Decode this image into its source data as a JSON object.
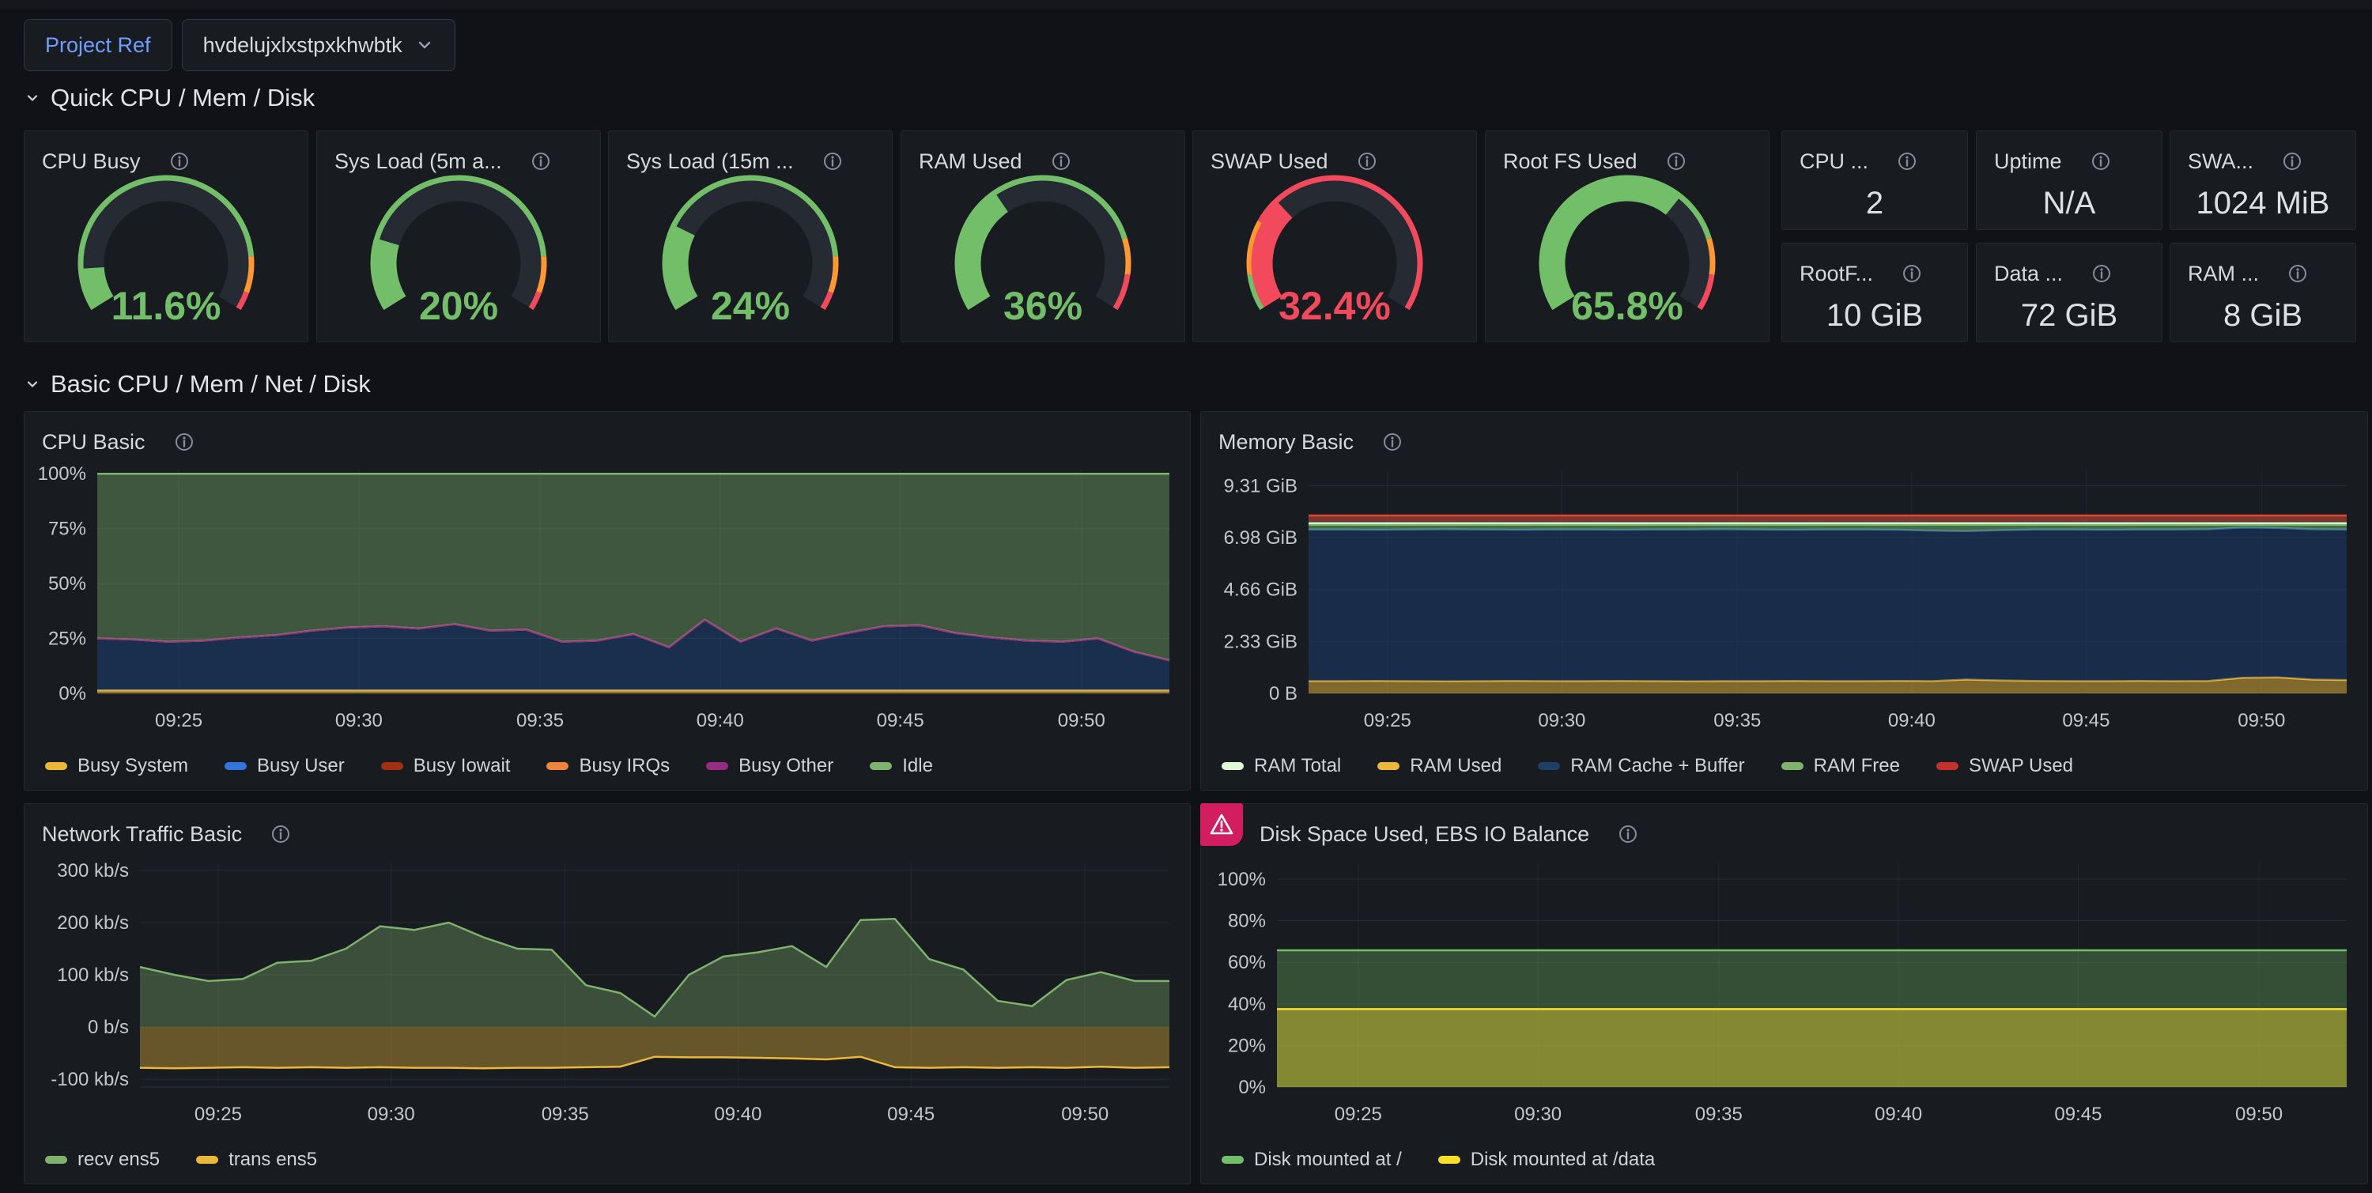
{
  "header": {
    "project_ref_label": "Project Ref",
    "project_ref_value": "hvdelujxlxstpxkhwbtk"
  },
  "sections": {
    "quick": "Quick CPU / Mem / Disk",
    "basic": "Basic CPU / Mem / Net / Disk"
  },
  "colors": {
    "green": "#73BF69",
    "orange": "#FF9830",
    "red": "#F2495C",
    "yellow": "#EAB839",
    "blue": "#3274D9",
    "alert_pink": "#d21e5f",
    "variable_label_blue": "#6e9fff"
  },
  "gauges": [
    {
      "title": "CPU Busy",
      "value_label": "11.6%",
      "fraction": 0.116,
      "color": "#73BF69",
      "thresholds": [
        {
          "to": 0.85,
          "color": "#73BF69"
        },
        {
          "to": 0.95,
          "color": "#FF9830"
        },
        {
          "to": 1,
          "color": "#F2495C"
        }
      ]
    },
    {
      "title": "Sys Load (5m a...",
      "value_label": "20%",
      "fraction": 0.2,
      "color": "#73BF69",
      "thresholds": [
        {
          "to": 0.85,
          "color": "#73BF69"
        },
        {
          "to": 0.95,
          "color": "#FF9830"
        },
        {
          "to": 1,
          "color": "#F2495C"
        }
      ]
    },
    {
      "title": "Sys Load (15m ...",
      "value_label": "24%",
      "fraction": 0.24,
      "color": "#73BF69",
      "thresholds": [
        {
          "to": 0.85,
          "color": "#73BF69"
        },
        {
          "to": 0.95,
          "color": "#FF9830"
        },
        {
          "to": 1,
          "color": "#F2495C"
        }
      ]
    },
    {
      "title": "RAM Used",
      "value_label": "36%",
      "fraction": 0.36,
      "color": "#73BF69",
      "thresholds": [
        {
          "to": 0.8,
          "color": "#73BF69"
        },
        {
          "to": 0.9,
          "color": "#FF9830"
        },
        {
          "to": 1,
          "color": "#F2495C"
        }
      ]
    },
    {
      "title": "SWAP Used",
      "value_label": "32.4%",
      "fraction": 0.324,
      "color": "#F2495C",
      "thresholds": [
        {
          "to": 0.1,
          "color": "#73BF69"
        },
        {
          "to": 0.25,
          "color": "#FF9830"
        },
        {
          "to": 1,
          "color": "#F2495C"
        }
      ]
    },
    {
      "title": "Root FS Used",
      "value_label": "65.8%",
      "fraction": 0.658,
      "color": "#73BF69",
      "thresholds": [
        {
          "to": 0.8,
          "color": "#73BF69"
        },
        {
          "to": 0.9,
          "color": "#FF9830"
        },
        {
          "to": 1,
          "color": "#F2495C"
        }
      ]
    }
  ],
  "stats": [
    {
      "title": "CPU ...",
      "value": "2"
    },
    {
      "title": "Uptime",
      "value": "N/A"
    },
    {
      "title": "SWA...",
      "value": "1024 MiB"
    },
    {
      "title": "RootF...",
      "value": "10 GiB"
    },
    {
      "title": "Data ...",
      "value": "72 GiB"
    },
    {
      "title": "RAM ...",
      "value": "8 GiB"
    }
  ],
  "chart_data": [
    {
      "type": "area",
      "stacked": true,
      "title": "CPU Basic",
      "margin_left": 92,
      "ylim": [
        0,
        101.5
      ],
      "y_ticks": [
        {
          "v": 0,
          "label": "0%"
        },
        {
          "v": 25,
          "label": "25%"
        },
        {
          "v": 50,
          "label": "50%"
        },
        {
          "v": 75,
          "label": "75%"
        },
        {
          "v": 100,
          "label": "100%"
        }
      ],
      "x_ticks": [
        {
          "pos": 0.076,
          "label": "09:25"
        },
        {
          "pos": 0.244,
          "label": "09:30"
        },
        {
          "pos": 0.413,
          "label": "09:35"
        },
        {
          "pos": 0.581,
          "label": "09:40"
        },
        {
          "pos": 0.749,
          "label": "09:45"
        },
        {
          "pos": 0.918,
          "label": "09:50"
        }
      ],
      "note": "series values are stacked-top percentages; Busy Iowait/IRQs/Other are ~0 so their lines sit on the Busy User boundary",
      "series": [
        {
          "name": "Busy System",
          "color": "#EAB839",
          "fill": "rgba(234,184,57,0.55)",
          "base": 0,
          "values": {
            "flat": 1.3,
            "n": 31
          }
        },
        {
          "name": "Busy User",
          "color": "#3274D9",
          "fill": "rgba(31,96,196,0.28)",
          "base": "prev",
          "values": [
            25,
            24.5,
            23.5,
            24,
            25.5,
            26.5,
            28.5,
            30,
            30.5,
            29.5,
            31.5,
            28.5,
            29,
            23.5,
            24,
            27,
            21,
            33.5,
            23.5,
            29.5,
            24,
            27.5,
            30.5,
            31,
            27.5,
            25.5,
            24,
            23.5,
            25,
            19,
            15
          ]
        },
        {
          "name": "Busy Iowait",
          "color": "#A0300F",
          "fill": "none",
          "base": "prev",
          "values": "=prev"
        },
        {
          "name": "Busy IRQs",
          "color": "#EF843C",
          "fill": "none",
          "base": "prev",
          "values": "=prev"
        },
        {
          "name": "Busy Other",
          "color": "#962D82",
          "fill": "none",
          "base": "prev",
          "values": "=prev"
        },
        {
          "name": "Idle",
          "color": "#7EB26D",
          "fill": "rgba(126,178,109,0.40)",
          "base": "prev",
          "values": {
            "flat": 100,
            "n": 31
          }
        }
      ],
      "legend": [
        {
          "name": "Busy System",
          "color": "#EAB839"
        },
        {
          "name": "Busy User",
          "color": "#3274D9"
        },
        {
          "name": "Busy Iowait",
          "color": "#A0300F"
        },
        {
          "name": "Busy IRQs",
          "color": "#EF843C"
        },
        {
          "name": "Busy Other",
          "color": "#962D82"
        },
        {
          "name": "Idle",
          "color": "#7EB26D"
        }
      ]
    },
    {
      "type": "area",
      "stacked": true,
      "title": "Memory Basic",
      "margin_left": 136,
      "ylim": [
        0,
        10.0
      ],
      "y_ticks": [
        {
          "v": 0,
          "label": "0 B"
        },
        {
          "v": 2.33,
          "label": "2.33 GiB"
        },
        {
          "v": 4.66,
          "label": "4.66 GiB"
        },
        {
          "v": 6.98,
          "label": "6.98 GiB"
        },
        {
          "v": 9.31,
          "label": "9.31 GiB"
        }
      ],
      "x_ticks": [
        {
          "pos": 0.076,
          "label": "09:25"
        },
        {
          "pos": 0.244,
          "label": "09:30"
        },
        {
          "pos": 0.413,
          "label": "09:35"
        },
        {
          "pos": 0.581,
          "label": "09:40"
        },
        {
          "pos": 0.749,
          "label": "09:45"
        },
        {
          "pos": 0.918,
          "label": "09:50"
        }
      ],
      "series": [
        {
          "name": "RAM Used",
          "color": "#EAB839",
          "fill": "rgba(234,184,57,0.50)",
          "base": 0,
          "values": [
            0.55,
            0.55,
            0.56,
            0.55,
            0.54,
            0.55,
            0.56,
            0.55,
            0.55,
            0.56,
            0.55,
            0.54,
            0.55,
            0.55,
            0.56,
            0.55,
            0.55,
            0.56,
            0.55,
            0.62,
            0.58,
            0.56,
            0.55,
            0.55,
            0.56,
            0.55,
            0.56,
            0.7,
            0.72,
            0.62,
            0.6
          ]
        },
        {
          "name": "RAM Cache + Buffer",
          "color": "#3e6b9e",
          "fill": "rgba(26,62,114,0.50)",
          "base": "prev",
          "values": [
            7.35,
            7.35,
            7.34,
            7.35,
            7.36,
            7.35,
            7.34,
            7.35,
            7.35,
            7.34,
            7.35,
            7.35,
            7.36,
            7.35,
            7.34,
            7.35,
            7.35,
            7.34,
            7.3,
            7.28,
            7.32,
            7.35,
            7.35,
            7.34,
            7.35,
            7.35,
            7.36,
            7.44,
            7.42,
            7.36,
            7.35
          ]
        },
        {
          "name": "RAM Free",
          "color": "#73BF69",
          "fill": "rgba(115,191,105,0.50)",
          "base": "prev",
          "values": {
            "flat": 7.56,
            "n": 31
          }
        },
        {
          "name": "RAM Total",
          "color": "#E0F9D7",
          "fill": "none",
          "base": null,
          "values": {
            "flat": 7.63,
            "n": 31
          }
        },
        {
          "name": "SWAP Used",
          "color": "#D6493A",
          "fill": "rgba(214,72,55,0.55)",
          "base": 7.7,
          "values": {
            "flat": 7.98,
            "n": 31
          }
        }
      ],
      "legend": [
        {
          "name": "RAM Total",
          "color": "#E0F9D7"
        },
        {
          "name": "RAM Used",
          "color": "#EAB839"
        },
        {
          "name": "RAM Cache + Buffer",
          "color": "#1F4066"
        },
        {
          "name": "RAM Free",
          "color": "#7EB26D"
        },
        {
          "name": "SWAP Used",
          "color": "#C4322A"
        }
      ]
    },
    {
      "type": "area",
      "title": "Network Traffic Basic",
      "margin_left": 146,
      "ylim": [
        -115,
        315
      ],
      "y_ticks": [
        {
          "v": -100,
          "label": "-100 kb/s"
        },
        {
          "v": 0,
          "label": "0 b/s"
        },
        {
          "v": 100,
          "label": "100 kb/s"
        },
        {
          "v": 200,
          "label": "200 kb/s"
        },
        {
          "v": 300,
          "label": "300 kb/s"
        }
      ],
      "x_ticks": [
        {
          "pos": 0.076,
          "label": "09:25"
        },
        {
          "pos": 0.244,
          "label": "09:30"
        },
        {
          "pos": 0.413,
          "label": "09:35"
        },
        {
          "pos": 0.581,
          "label": "09:40"
        },
        {
          "pos": 0.749,
          "label": "09:45"
        },
        {
          "pos": 0.918,
          "label": "09:50"
        }
      ],
      "series": [
        {
          "name": "recv ens5",
          "color": "#7EB26D",
          "fill": "rgba(126,178,109,0.35)",
          "base": 0,
          "values": [
            115,
            100,
            88,
            92,
            123,
            127,
            150,
            193,
            186,
            200,
            172,
            150,
            148,
            80,
            65,
            20,
            100,
            135,
            143,
            155,
            115,
            205,
            207,
            130,
            110,
            50,
            40,
            90,
            105,
            88,
            88
          ]
        },
        {
          "name": "trans ens5",
          "color": "#EAB839",
          "fill": "rgba(234,184,57,0.38)",
          "base": 0,
          "values": [
            -78,
            -79,
            -78,
            -77,
            -78,
            -77,
            -78,
            -77,
            -78,
            -78,
            -79,
            -78,
            -78,
            -77,
            -76,
            -57,
            -58,
            -58,
            -59,
            -60,
            -62,
            -57,
            -77,
            -78,
            -77,
            -78,
            -77,
            -78,
            -76,
            -78,
            -77
          ]
        }
      ],
      "legend": [
        {
          "name": "recv ens5",
          "color": "#7EB26D"
        },
        {
          "name": "trans ens5",
          "color": "#EAB839"
        }
      ]
    },
    {
      "type": "area",
      "title": "Disk Space Used, EBS IO Balance",
      "has_alert": true,
      "margin_left": 96,
      "ylim": [
        0,
        108
      ],
      "y_ticks": [
        {
          "v": 0,
          "label": "0%"
        },
        {
          "v": 20,
          "label": "20%"
        },
        {
          "v": 40,
          "label": "40%"
        },
        {
          "v": 60,
          "label": "60%"
        },
        {
          "v": 80,
          "label": "80%"
        },
        {
          "v": 100,
          "label": "100%"
        }
      ],
      "x_ticks": [
        {
          "pos": 0.076,
          "label": "09:25"
        },
        {
          "pos": 0.244,
          "label": "09:30"
        },
        {
          "pos": 0.413,
          "label": "09:35"
        },
        {
          "pos": 0.581,
          "label": "09:40"
        },
        {
          "pos": 0.749,
          "label": "09:45"
        },
        {
          "pos": 0.918,
          "label": "09:50"
        }
      ],
      "series": [
        {
          "name": "Disk mounted at /",
          "color": "#73BF69",
          "fill": "rgba(115,191,105,0.32)",
          "base": 0,
          "values": [
            65.8,
            65.8
          ]
        },
        {
          "name": "Disk mounted at /data",
          "color": "#FADE2A",
          "fill": "rgba(250,222,42,0.40)",
          "base": 0,
          "values": [
            37.5,
            37.5
          ]
        }
      ],
      "legend": [
        {
          "name": "Disk mounted at /",
          "color": "#73BF69"
        },
        {
          "name": "Disk mounted at /data",
          "color": "#FADE2A"
        }
      ]
    }
  ]
}
